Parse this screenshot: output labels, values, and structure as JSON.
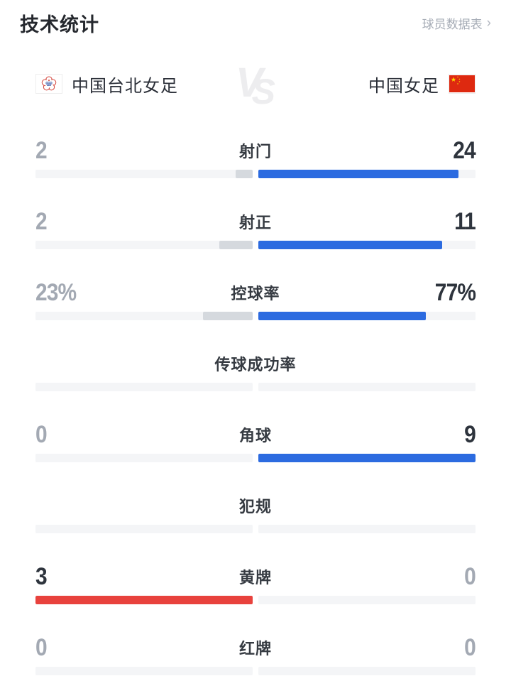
{
  "header": {
    "title": "技术统计",
    "link_label": "球员数据表",
    "chevron": "›"
  },
  "teams": {
    "home": {
      "name": "中国台北女足"
    },
    "away": {
      "name": "中国女足"
    },
    "vs_v": "V",
    "vs_s": "S"
  },
  "colors": {
    "accent_blue": "#2c6be0",
    "accent_red": "#e8423d",
    "neutral_fill": "#d5d9de",
    "track": "#f4f5f7",
    "value_strong": "#2e343d",
    "value_muted": "#a3a9b3"
  },
  "chart_data": {
    "type": "bar",
    "title": "技术统计",
    "categories": [
      "射门",
      "射正",
      "控球率",
      "传球成功率",
      "角球",
      "犯规",
      "黄牌",
      "红牌"
    ],
    "series": [
      {
        "name": "中国台北女足",
        "values": [
          2,
          2,
          23,
          null,
          0,
          null,
          3,
          0
        ]
      },
      {
        "name": "中国女足",
        "values": [
          24,
          11,
          77,
          null,
          9,
          null,
          0,
          0
        ]
      }
    ],
    "units": [
      "",
      "",
      "%",
      "%",
      "",
      "",
      "",
      ""
    ],
    "layout": "paired horizontal bars growing outward from center; winner value dark, loser gray; home fill gray (red for cards), away fill blue"
  },
  "stats": {
    "rows": [
      {
        "label": "射门",
        "left": "2",
        "right": "24",
        "left_pct": 7.7,
        "right_pct": 92.3,
        "left_class": "muted",
        "right_class": "strong",
        "left_color": "#d5d9de",
        "right_color": "#2c6be0"
      },
      {
        "label": "射正",
        "left": "2",
        "right": "11",
        "left_pct": 15.4,
        "right_pct": 84.6,
        "left_class": "muted",
        "right_class": "strong",
        "left_color": "#d5d9de",
        "right_color": "#2c6be0"
      },
      {
        "label": "控球率",
        "left": "23%",
        "right": "77%",
        "left_pct": 23,
        "right_pct": 77,
        "left_class": "muted",
        "right_class": "strong",
        "left_color": "#d5d9de",
        "right_color": "#2c6be0"
      },
      {
        "label": "传球成功率",
        "left": "",
        "right": "",
        "left_pct": 0,
        "right_pct": 0,
        "left_class": "muted",
        "right_class": "muted",
        "left_color": "#d5d9de",
        "right_color": "#2c6be0"
      },
      {
        "label": "角球",
        "left": "0",
        "right": "9",
        "left_pct": 0,
        "right_pct": 100,
        "left_class": "muted",
        "right_class": "strong",
        "left_color": "#d5d9de",
        "right_color": "#2c6be0"
      },
      {
        "label": "犯规",
        "left": "",
        "right": "",
        "left_pct": 0,
        "right_pct": 0,
        "left_class": "muted",
        "right_class": "muted",
        "left_color": "#d5d9de",
        "right_color": "#2c6be0"
      },
      {
        "label": "黄牌",
        "left": "3",
        "right": "0",
        "left_pct": 100,
        "right_pct": 0,
        "left_class": "strong",
        "right_class": "muted",
        "left_color": "#e8423d",
        "right_color": "#2c6be0"
      },
      {
        "label": "红牌",
        "left": "0",
        "right": "0",
        "left_pct": 0,
        "right_pct": 0,
        "left_class": "muted",
        "right_class": "muted",
        "left_color": "#d5d9de",
        "right_color": "#2c6be0"
      }
    ]
  }
}
